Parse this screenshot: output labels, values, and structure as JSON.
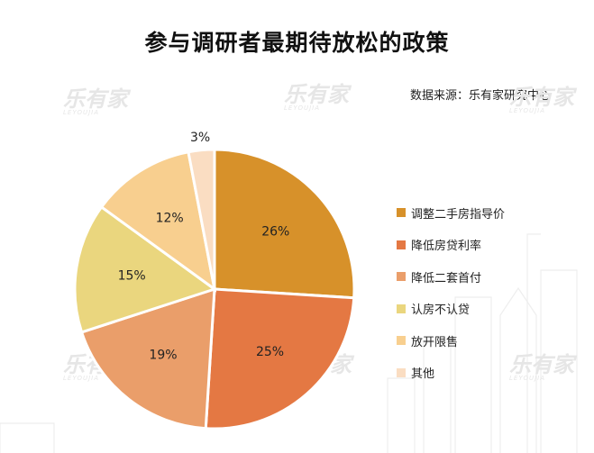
{
  "title": "参与调研者最期待放松的政策",
  "source": "数据来源：乐有家研究中心",
  "watermark": "乐有家",
  "colors": [
    "#D7912A",
    "#E47843",
    "#EA9E6A",
    "#EAD67E",
    "#F8CF8F",
    "#FADDC2"
  ],
  "chart_data": {
    "type": "pie",
    "categories": [
      "调整二手房指导价",
      "降低房贷利率",
      "降低二套首付",
      "认房不认贷",
      "放开限售",
      "其他"
    ],
    "values": [
      26,
      25,
      19,
      15,
      12,
      3
    ],
    "labels": [
      "26%",
      "25%",
      "19%",
      "15%",
      "12%",
      "3%"
    ],
    "start": "12 o'clock",
    "direction": "clockwise",
    "legend": "right"
  }
}
